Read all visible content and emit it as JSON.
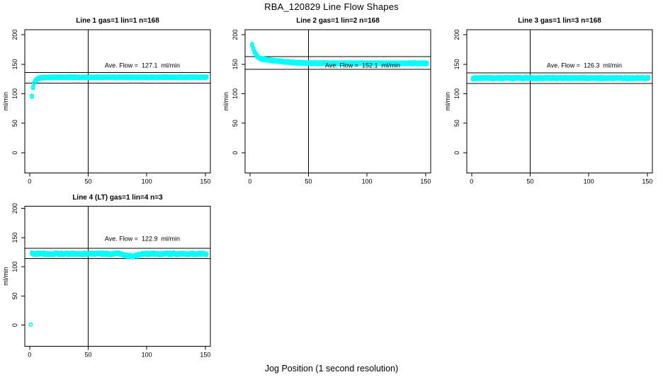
{
  "figure": {
    "title": "RBA_120829  Line Flow Shapes",
    "xlabel": "Jog Position (1 second resolution)",
    "background": "#FFFFFF",
    "point_color": "#00FFFF",
    "line_color": "#000000"
  },
  "chart_data": [
    {
      "type": "scatter",
      "title": "Line 1 gas=1 lin=1 n=168",
      "ylabel": "ml/min",
      "annotation": "Ave. Flow =  127.1  ml/min",
      "ave_flow": 127.1,
      "band_lines": [
        136.0,
        118.2
      ],
      "vline_x": 50,
      "x_ticks": [
        0,
        50,
        100,
        150
      ],
      "y_ticks": [
        0,
        50,
        100,
        150,
        200
      ],
      "xlim": [
        -4.1,
        154.3
      ],
      "ylim": [
        -34.2,
        208.5
      ],
      "x_range": [
        2,
        151
      ],
      "profile": [
        [
          2,
          95.5
        ],
        [
          3,
          111
        ],
        [
          4,
          118
        ],
        [
          5,
          122
        ],
        [
          6,
          124
        ],
        [
          7,
          125.5
        ],
        [
          8,
          126.3
        ],
        [
          10,
          127
        ],
        [
          14,
          127.5
        ],
        [
          25,
          127.8
        ],
        [
          151,
          127.9
        ]
      ],
      "outliers": [],
      "noise": 0.4,
      "band_halfwidth": 1.3
    },
    {
      "type": "scatter",
      "title": "Line 2 gas=1 lin=2 n=168",
      "ylabel": "ml/min",
      "annotation": "Ave. Flow =  152.1  ml/min",
      "ave_flow": 152.1,
      "band_lines": [
        162.7,
        141.5
      ],
      "vline_x": 50,
      "x_ticks": [
        0,
        50,
        100,
        150
      ],
      "y_ticks": [
        0,
        50,
        100,
        150,
        200
      ],
      "xlim": [
        -4.1,
        154.3
      ],
      "ylim": [
        -34.2,
        208.5
      ],
      "x_range": [
        2,
        151
      ],
      "profile": [
        [
          2,
          183.5
        ],
        [
          3,
          176
        ],
        [
          4,
          171
        ],
        [
          5,
          167.5
        ],
        [
          6,
          164.5
        ],
        [
          7,
          162.3
        ],
        [
          8,
          160.5
        ],
        [
          10,
          158.8
        ],
        [
          13,
          157.8
        ],
        [
          16,
          157.2
        ],
        [
          20,
          156.3
        ],
        [
          25,
          155.3
        ],
        [
          30,
          154
        ],
        [
          35,
          153.2
        ],
        [
          40,
          152.7
        ],
        [
          45,
          152.2
        ],
        [
          55,
          151.8
        ],
        [
          151,
          151.5
        ]
      ],
      "outliers": [],
      "noise": 0.4,
      "band_halfwidth": 1.4
    },
    {
      "type": "scatter",
      "title": "Line 3 gas=1 lin=3 n=168",
      "ylabel": "ml/min",
      "annotation": "Ave. Flow =  126.3  ml/min",
      "ave_flow": 126.3,
      "band_lines": [
        135.1,
        117.5
      ],
      "vline_x": 50,
      "x_ticks": [
        0,
        50,
        100,
        150
      ],
      "y_ticks": [
        0,
        50,
        100,
        150,
        200
      ],
      "xlim": [
        -4.1,
        154.3
      ],
      "ylim": [
        -34.2,
        208.5
      ],
      "x_range": [
        1,
        151
      ],
      "profile": [
        [
          1,
          125.2
        ],
        [
          3,
          126.5
        ],
        [
          151,
          126.6
        ]
      ],
      "outliers": [],
      "noise": 0.5,
      "band_halfwidth": 1.5
    },
    {
      "type": "scatter",
      "title": "Line 4 (LT) gas=1 lin=4 n=3",
      "ylabel": "ml/min",
      "annotation": "Ave. Flow =  122.9  ml/min",
      "ave_flow": 122.9,
      "band_lines": [
        131.5,
        114.3
      ],
      "vline_x": 50,
      "x_ticks": [
        0,
        50,
        100,
        150
      ],
      "y_ticks": [
        0,
        50,
        100,
        150,
        200
      ],
      "xlim": [
        -4.1,
        154.3
      ],
      "ylim": [
        -36.0,
        203.5
      ],
      "x_range": [
        2,
        151
      ],
      "profile": [
        [
          2,
          122.3
        ],
        [
          78,
          122.2
        ],
        [
          82,
          119.5
        ],
        [
          84,
          118.6
        ],
        [
          88,
          118.2
        ],
        [
          91,
          118.9
        ],
        [
          94,
          121.2
        ],
        [
          99,
          122.1
        ],
        [
          151,
          122.2
        ]
      ],
      "outliers": [
        [
          1,
          1
        ]
      ],
      "noise": 1.1,
      "band_halfwidth": 1.4
    }
  ]
}
